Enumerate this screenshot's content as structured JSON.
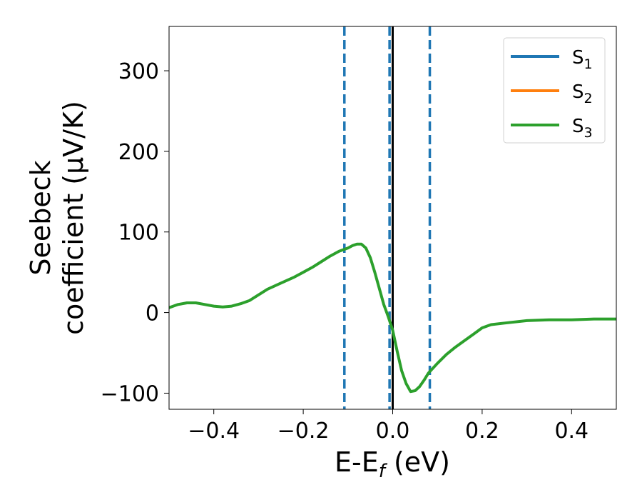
{
  "chart_data": {
    "type": "line",
    "title": "",
    "xlabel": {
      "main": "E-E",
      "sub": "f",
      "unit": " (eV)"
    },
    "ylabel": {
      "line1": "Seebeck",
      "line2": "coefficient  (μV/K)"
    },
    "xlim": [
      -0.5,
      0.5
    ],
    "ylim": [
      -120,
      355
    ],
    "xticks": [
      -0.4,
      -0.2,
      0.0,
      0.2,
      0.4
    ],
    "xtick_labels": [
      "−0.4",
      "−0.2",
      "0.0",
      "0.2",
      "0.4"
    ],
    "yticks": [
      -100,
      0,
      100,
      200,
      300
    ],
    "ytick_labels": [
      "−100",
      "0",
      "100",
      "200",
      "300"
    ],
    "grid": false,
    "legend_position": "top-right",
    "legend": [
      {
        "base": "S",
        "sub": "1",
        "color": "#1f77b4"
      },
      {
        "base": "S",
        "sub": "2",
        "color": "#ff7f0e"
      },
      {
        "base": "S",
        "sub": "3",
        "color": "#2ca02c"
      }
    ],
    "series": [
      {
        "name": "S₃",
        "color": "#2ca02c",
        "x": [
          -0.5,
          -0.48,
          -0.46,
          -0.44,
          -0.42,
          -0.4,
          -0.38,
          -0.36,
          -0.34,
          -0.32,
          -0.3,
          -0.28,
          -0.26,
          -0.24,
          -0.22,
          -0.2,
          -0.18,
          -0.16,
          -0.14,
          -0.12,
          -0.1,
          -0.09,
          -0.08,
          -0.07,
          -0.06,
          -0.05,
          -0.04,
          -0.03,
          -0.02,
          -0.01,
          0.0,
          0.01,
          0.02,
          0.03,
          0.04,
          0.05,
          0.06,
          0.07,
          0.08,
          0.1,
          0.12,
          0.14,
          0.16,
          0.18,
          0.2,
          0.22,
          0.25,
          0.3,
          0.35,
          0.4,
          0.45,
          0.5
        ],
        "y": [
          6,
          10,
          12,
          12,
          10,
          8,
          7,
          8,
          11,
          15,
          22,
          29,
          34,
          39,
          44,
          50,
          56,
          63,
          70,
          76,
          80,
          83,
          85,
          85,
          80,
          68,
          50,
          30,
          10,
          -5,
          -22,
          -48,
          -72,
          -88,
          -98,
          -97,
          -92,
          -84,
          -75,
          -63,
          -52,
          -43,
          -35,
          -27,
          -19,
          -15,
          -13,
          -10,
          -9,
          -9,
          -8,
          -8
        ]
      }
    ],
    "vlines": [
      {
        "x": -0.108,
        "style": "dashed",
        "color": "#1f77b4"
      },
      {
        "x": -0.007,
        "style": "dashed",
        "color": "#1f77b4"
      },
      {
        "x": 0.083,
        "style": "dashed",
        "color": "#1f77b4"
      },
      {
        "x": 0.0,
        "style": "solid",
        "color": "#000000"
      }
    ]
  }
}
